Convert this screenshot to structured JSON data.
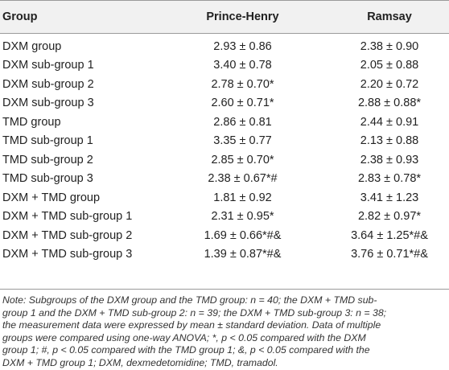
{
  "table": {
    "headers": [
      "Group",
      "Prince-Henry",
      "Ramsay"
    ],
    "rows": [
      [
        "DXM group",
        "2.93 ± 0.86",
        "2.38 ± 0.90"
      ],
      [
        "DXM sub-group 1",
        "3.40 ± 0.78",
        "2.05 ± 0.88"
      ],
      [
        "DXM sub-group 2",
        "2.78 ± 0.70*",
        "2.20 ± 0.72"
      ],
      [
        "DXM sub-group 3",
        "2.60 ± 0.71*",
        "2.88 ± 0.88*"
      ],
      [
        "TMD group",
        "2.86 ± 0.81",
        "2.44 ± 0.91"
      ],
      [
        "TMD sub-group 1",
        "3.35 ± 0.77",
        "2.13 ± 0.88"
      ],
      [
        "TMD sub-group 2",
        "2.85 ± 0.70*",
        "2.38 ± 0.93"
      ],
      [
        "TMD sub-group 3",
        "2.38 ± 0.67*#",
        "2.83 ± 0.78*"
      ],
      [
        "DXM + TMD group",
        "1.81 ± 0.92",
        "3.41 ± 1.23"
      ],
      [
        "DXM + TMD sub-group 1",
        "2.31 ± 0.95*",
        "2.82 ± 0.97*"
      ],
      [
        "DXM + TMD sub-group 2",
        "1.69 ± 0.66*#&",
        "3.64 ± 1.25*#&"
      ],
      [
        "DXM + TMD sub-group 3",
        "1.39 ± 0.87*#&",
        "3.76 ± 0.71*#&"
      ]
    ]
  },
  "note": {
    "lines": [
      "Note: Subgroups of the DXM group and the TMD group: n = 40; the DXM + TMD sub-",
      "group 1 and the DXM + TMD sub-group 2: n = 39; the DXM + TMD sub-group 3: n = 38;",
      "the measurement data were expressed by mean ± standard deviation. Data of multiple",
      "groups were compared using one-way ANOVA; *, p < 0.05 compared with the DXM",
      "group 1; #, p < 0.05 compared with the TMD group 1; &, p < 0.05 compared with the",
      "DXM + TMD group 1; DXM, dexmedetomidine; TMD, tramadol."
    ]
  }
}
